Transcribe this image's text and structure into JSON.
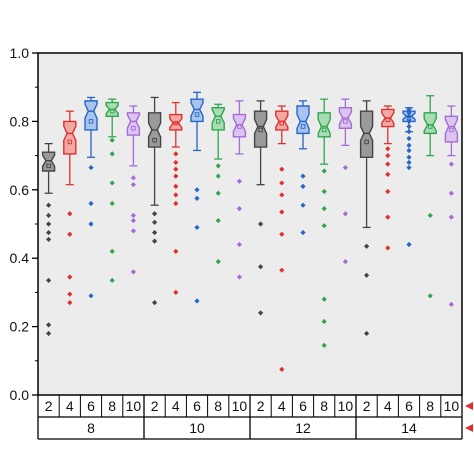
{
  "chart_data": {
    "type": "box",
    "ylim": [
      0.0,
      1.0
    ],
    "yticks": [
      "0.0",
      "0.2",
      "0.4",
      "0.6",
      "0.8",
      "1.0"
    ],
    "ytick_values": [
      0.0,
      0.2,
      0.4,
      0.6,
      0.8,
      1.0
    ],
    "xlabel": "",
    "ylabel": "",
    "title": "",
    "grid": false,
    "legend": "none",
    "background": "#ececec",
    "sub_categories": [
      "2",
      "4",
      "6",
      "8",
      "10"
    ],
    "colors": [
      "#444444",
      "#e0302f",
      "#2866c7",
      "#2fa64e",
      "#a56bd6"
    ],
    "fills": [
      "#9a9a9a",
      "#f1a9a4",
      "#a9c4ec",
      "#a9dcb4",
      "#dcc4f1"
    ],
    "groups": [
      {
        "label": "8",
        "boxes": [
          {
            "sub": "2",
            "whisker_low": 0.59,
            "q1": 0.655,
            "median": 0.685,
            "q3": 0.71,
            "whisker_high": 0.735,
            "mean": 0.67,
            "outliers": [
              0.555,
              0.525,
              0.5,
              0.475,
              0.455,
              0.335,
              0.205,
              0.18
            ]
          },
          {
            "sub": "4",
            "whisker_low": 0.615,
            "q1": 0.705,
            "median": 0.765,
            "q3": 0.8,
            "whisker_high": 0.83,
            "mean": 0.74,
            "outliers": [
              0.53,
              0.47,
              0.345,
              0.295,
              0.27
            ]
          },
          {
            "sub": "6",
            "whisker_low": 0.695,
            "q1": 0.775,
            "median": 0.83,
            "q3": 0.86,
            "whisker_high": 0.87,
            "mean": 0.8,
            "outliers": [
              0.665,
              0.56,
              0.5,
              0.29
            ]
          },
          {
            "sub": "8",
            "whisker_low": 0.755,
            "q1": 0.815,
            "median": 0.835,
            "q3": 0.855,
            "whisker_high": 0.865,
            "mean": 0.83,
            "outliers": [
              0.745,
              0.705,
              0.62,
              0.56,
              0.42,
              0.335
            ]
          },
          {
            "sub": "10",
            "whisker_low": 0.67,
            "q1": 0.76,
            "median": 0.8,
            "q3": 0.825,
            "whisker_high": 0.845,
            "mean": 0.78,
            "outliers": [
              0.635,
              0.615,
              0.525,
              0.51,
              0.48,
              0.36
            ]
          }
        ]
      },
      {
        "label": "10",
        "boxes": [
          {
            "sub": "2",
            "whisker_low": 0.555,
            "q1": 0.725,
            "median": 0.775,
            "q3": 0.825,
            "whisker_high": 0.87,
            "mean": 0.745,
            "outliers": [
              0.53,
              0.505,
              0.475,
              0.45,
              0.27
            ]
          },
          {
            "sub": "4",
            "whisker_low": 0.725,
            "q1": 0.775,
            "median": 0.795,
            "q3": 0.82,
            "whisker_high": 0.855,
            "mean": 0.795,
            "outliers": [
              0.705,
              0.68,
              0.66,
              0.64,
              0.61,
              0.585,
              0.56,
              0.42,
              0.3
            ]
          },
          {
            "sub": "6",
            "whisker_low": 0.715,
            "q1": 0.8,
            "median": 0.835,
            "q3": 0.865,
            "whisker_high": 0.885,
            "mean": 0.82,
            "outliers": [
              0.6,
              0.575,
              0.49,
              0.275
            ]
          },
          {
            "sub": "8",
            "whisker_low": 0.69,
            "q1": 0.775,
            "median": 0.815,
            "q3": 0.84,
            "whisker_high": 0.85,
            "mean": 0.8,
            "outliers": [
              0.67,
              0.64,
              0.59,
              0.51,
              0.39
            ]
          },
          {
            "sub": "10",
            "whisker_low": 0.705,
            "q1": 0.755,
            "median": 0.79,
            "q3": 0.82,
            "whisker_high": 0.86,
            "mean": 0.785,
            "outliers": [
              0.625,
              0.545,
              0.44,
              0.345
            ]
          }
        ]
      },
      {
        "label": "12",
        "boxes": [
          {
            "sub": "2",
            "whisker_low": 0.615,
            "q1": 0.725,
            "median": 0.785,
            "q3": 0.83,
            "whisker_high": 0.86,
            "mean": 0.775,
            "outliers": [
              0.5,
              0.375,
              0.24
            ]
          },
          {
            "sub": "4",
            "whisker_low": 0.735,
            "q1": 0.775,
            "median": 0.8,
            "q3": 0.83,
            "whisker_high": 0.845,
            "mean": 0.795,
            "outliers": [
              0.66,
              0.62,
              0.585,
              0.535,
              0.47,
              0.365,
              0.075
            ]
          },
          {
            "sub": "6",
            "whisker_low": 0.72,
            "q1": 0.765,
            "median": 0.8,
            "q3": 0.845,
            "whisker_high": 0.86,
            "mean": 0.785,
            "outliers": [
              0.64,
              0.61,
              0.555,
              0.475
            ]
          },
          {
            "sub": "8",
            "whisker_low": 0.675,
            "q1": 0.755,
            "median": 0.785,
            "q3": 0.825,
            "whisker_high": 0.865,
            "mean": 0.775,
            "outliers": [
              0.655,
              0.595,
              0.545,
              0.495,
              0.28,
              0.215,
              0.145
            ]
          },
          {
            "sub": "10",
            "whisker_low": 0.73,
            "q1": 0.78,
            "median": 0.81,
            "q3": 0.84,
            "whisker_high": 0.865,
            "mean": 0.8,
            "outliers": [
              0.665,
              0.53,
              0.39
            ]
          }
        ]
      },
      {
        "label": "14",
        "boxes": [
          {
            "sub": "2",
            "whisker_low": 0.49,
            "q1": 0.695,
            "median": 0.765,
            "q3": 0.83,
            "whisker_high": 0.86,
            "mean": 0.74,
            "outliers": [
              0.435,
              0.35,
              0.18
            ]
          },
          {
            "sub": "4",
            "whisker_low": 0.735,
            "q1": 0.785,
            "median": 0.81,
            "q3": 0.835,
            "whisker_high": 0.845,
            "mean": 0.805,
            "outliers": [
              0.72,
              0.7,
              0.675,
              0.645,
              0.595,
              0.52,
              0.43
            ]
          },
          {
            "sub": "6",
            "whisker_low": 0.77,
            "q1": 0.8,
            "median": 0.815,
            "q3": 0.83,
            "whisker_high": 0.84,
            "mean": 0.81,
            "outliers": [
              0.835,
              0.83,
              0.825,
              0.815,
              0.8,
              0.785,
              0.77,
              0.75,
              0.73,
              0.715,
              0.695,
              0.68,
              0.665,
              0.44
            ]
          },
          {
            "sub": "8",
            "whisker_low": 0.7,
            "q1": 0.765,
            "median": 0.79,
            "q3": 0.825,
            "whisker_high": 0.875,
            "mean": 0.785,
            "outliers": [
              0.525,
              0.29
            ]
          },
          {
            "sub": "10",
            "whisker_low": 0.7,
            "q1": 0.74,
            "median": 0.785,
            "q3": 0.815,
            "whisker_high": 0.845,
            "mean": 0.775,
            "outliers": [
              0.675,
              0.59,
              0.52,
              0.265
            ]
          }
        ]
      }
    ]
  }
}
